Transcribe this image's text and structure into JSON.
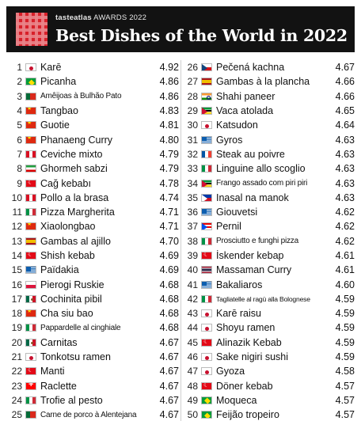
{
  "header": {
    "brand_prefix": "tasteatlas",
    "brand_suffix": "AWARDS 2022",
    "title": "Best Dishes of the World in 2022"
  },
  "left": [
    {
      "rank": "1",
      "flag": "jp",
      "dish": "Karē",
      "score": "4.92"
    },
    {
      "rank": "2",
      "flag": "br",
      "dish": "Picanha",
      "score": "4.86"
    },
    {
      "rank": "3",
      "flag": "pt",
      "dish": "Amêijoas à Bulhão Pato",
      "score": "4.86",
      "size": "small"
    },
    {
      "rank": "4",
      "flag": "cn",
      "dish": "Tangbao",
      "score": "4.83"
    },
    {
      "rank": "5",
      "flag": "cn",
      "dish": "Guotie",
      "score": "4.81"
    },
    {
      "rank": "6",
      "flag": "cn",
      "dish": "Phanaeng Curry",
      "score": "4.80"
    },
    {
      "rank": "7",
      "flag": "pe",
      "dish": "Ceviche mixto",
      "score": "4.79"
    },
    {
      "rank": "8",
      "flag": "ir",
      "dish": "Ghormeh sabzi",
      "score": "4.79"
    },
    {
      "rank": "9",
      "flag": "tr",
      "dish": "Cağ kebabı",
      "score": "4.78"
    },
    {
      "rank": "10",
      "flag": "pe",
      "dish": "Pollo a la brasa",
      "score": "4.74"
    },
    {
      "rank": "11",
      "flag": "it",
      "dish": "Pizza Margherita",
      "score": "4.71"
    },
    {
      "rank": "12",
      "flag": "cn",
      "dish": "Xiaolongbao",
      "score": "4.71"
    },
    {
      "rank": "13",
      "flag": "es",
      "dish": "Gambas al ajillo",
      "score": "4.70"
    },
    {
      "rank": "14",
      "flag": "tr",
      "dish": "Shish kebab",
      "score": "4.69"
    },
    {
      "rank": "15",
      "flag": "gr",
      "dish": "Païdakia",
      "score": "4.69"
    },
    {
      "rank": "16",
      "flag": "pl",
      "dish": "Pierogi Ruskie",
      "score": "4.68"
    },
    {
      "rank": "17",
      "flag": "mx",
      "dish": "Cochinita pibil",
      "score": "4.68"
    },
    {
      "rank": "18",
      "flag": "cn",
      "dish": "Cha siu bao",
      "score": "4.68"
    },
    {
      "rank": "19",
      "flag": "it",
      "dish": "Pappardelle al cinghiale",
      "score": "4.68",
      "size": "small"
    },
    {
      "rank": "20",
      "flag": "mx",
      "dish": "Carnitas",
      "score": "4.67"
    },
    {
      "rank": "21",
      "flag": "jp",
      "dish": "Tonkotsu ramen",
      "score": "4.67"
    },
    {
      "rank": "22",
      "flag": "tr",
      "dish": "Manti",
      "score": "4.67"
    },
    {
      "rank": "23",
      "flag": "ch",
      "dish": "Raclette",
      "score": "4.67"
    },
    {
      "rank": "24",
      "flag": "it",
      "dish": "Trofie al pesto",
      "score": "4.67"
    },
    {
      "rank": "25",
      "flag": "pt",
      "dish": "Carne de porco à Alentejana",
      "score": "4.67",
      "size": "small"
    }
  ],
  "right": [
    {
      "rank": "26",
      "flag": "cz",
      "dish": "Pečená kachna",
      "score": "4.67"
    },
    {
      "rank": "27",
      "flag": "es",
      "dish": "Gambas à la plancha",
      "score": "4.66"
    },
    {
      "rank": "28",
      "flag": "in",
      "dish": "Shahi paneer",
      "score": "4.66"
    },
    {
      "rank": "29",
      "flag": "mz",
      "dish": "Vaca atolada",
      "score": "4.65"
    },
    {
      "rank": "30",
      "flag": "jp",
      "dish": "Katsudon",
      "score": "4.64"
    },
    {
      "rank": "31",
      "flag": "gr",
      "dish": "Gyros",
      "score": "4.63"
    },
    {
      "rank": "32",
      "flag": "fr",
      "dish": "Steak au poivre",
      "score": "4.63"
    },
    {
      "rank": "33",
      "flag": "it",
      "dish": "Linguine allo scoglio",
      "score": "4.63"
    },
    {
      "rank": "34",
      "flag": "mz",
      "dish": "Frango assado com piri piri",
      "score": "4.63",
      "size": "small"
    },
    {
      "rank": "35",
      "flag": "ph",
      "dish": "Inasal na manok",
      "score": "4.63"
    },
    {
      "rank": "36",
      "flag": "gr",
      "dish": "Giouvetsi",
      "score": "4.62"
    },
    {
      "rank": "37",
      "flag": "pr",
      "dish": "Pernil",
      "score": "4.62"
    },
    {
      "rank": "38",
      "flag": "it",
      "dish": "Prosciutto e funghi pizza",
      "score": "4.62",
      "size": "small"
    },
    {
      "rank": "39",
      "flag": "tr",
      "dish": "İskender kebap",
      "score": "4.61"
    },
    {
      "rank": "40",
      "flag": "th",
      "dish": "Massaman Curry",
      "score": "4.61"
    },
    {
      "rank": "41",
      "flag": "gr",
      "dish": "Bakaliaros",
      "score": "4.60"
    },
    {
      "rank": "42",
      "flag": "it",
      "dish": "Tagliatelle al ragù alla Bolognese",
      "score": "4.59",
      "size": "xsmall"
    },
    {
      "rank": "43",
      "flag": "jp",
      "dish": "Karē raisu",
      "score": "4.59"
    },
    {
      "rank": "44",
      "flag": "jp",
      "dish": "Shoyu ramen",
      "score": "4.59"
    },
    {
      "rank": "45",
      "flag": "tr",
      "dish": "Alinazik Kebab",
      "score": "4.59"
    },
    {
      "rank": "46",
      "flag": "jp",
      "dish": "Sake nigiri sushi",
      "score": "4.59"
    },
    {
      "rank": "47",
      "flag": "jp",
      "dish": "Gyoza",
      "score": "4.58"
    },
    {
      "rank": "48",
      "flag": "tr",
      "dish": "Döner kebab",
      "score": "4.57"
    },
    {
      "rank": "49",
      "flag": "br",
      "dish": "Moqueca",
      "score": "4.57"
    },
    {
      "rank": "50",
      "flag": "br",
      "dish": "Feijão tropeiro",
      "score": "4.57"
    }
  ]
}
